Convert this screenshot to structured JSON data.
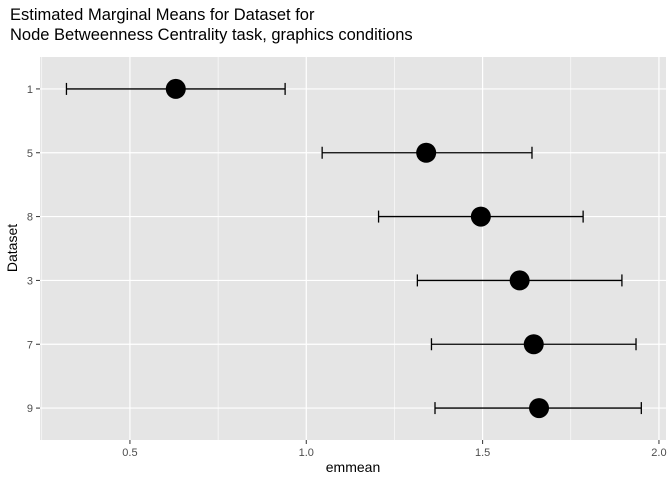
{
  "chart_data": {
    "type": "scatter",
    "title": [
      "Estimated Marginal Means for Dataset for",
      "Node Betweenness Centrality task, graphics conditions"
    ],
    "xlabel": "emmean",
    "ylabel": "Dataset",
    "xlim": [
      0.245,
      2.02
    ],
    "x_ticks": [
      0.5,
      1.0,
      1.5,
      2.0
    ],
    "x_tick_labels": [
      "0.5",
      "1.0",
      "1.5",
      "2.0"
    ],
    "grid": true,
    "categories": [
      "1",
      "5",
      "8",
      "3",
      "7",
      "9"
    ],
    "points": [
      {
        "dataset": "1",
        "emmean": 0.63,
        "lower": 0.32,
        "upper": 0.94
      },
      {
        "dataset": "5",
        "emmean": 1.34,
        "lower": 1.045,
        "upper": 1.64
      },
      {
        "dataset": "8",
        "emmean": 1.495,
        "lower": 1.205,
        "upper": 1.785
      },
      {
        "dataset": "3",
        "emmean": 1.605,
        "lower": 1.315,
        "upper": 1.895
      },
      {
        "dataset": "7",
        "emmean": 1.645,
        "lower": 1.355,
        "upper": 1.935
      },
      {
        "dataset": "9",
        "emmean": 1.66,
        "lower": 1.365,
        "upper": 1.95
      }
    ],
    "colors": {
      "panel": "#e5e5e5",
      "grid": "#ffffff",
      "point": "#000000",
      "errorbar": "#000000"
    }
  }
}
